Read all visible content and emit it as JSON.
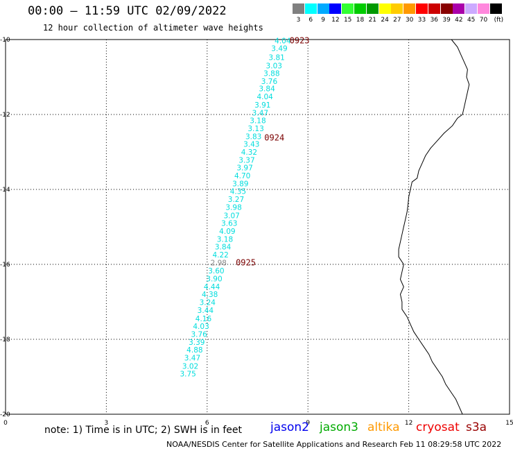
{
  "header": {
    "title": "00:00 – 11:59 UTC 02/09/2022",
    "subtitle": "12 hour collection of altimeter wave heights"
  },
  "color_scale": {
    "unit": "(ft)",
    "bins": [
      {
        "label": "3",
        "color": "#808080"
      },
      {
        "label": "6",
        "color": "#00ffff"
      },
      {
        "label": "9",
        "color": "#00aaff"
      },
      {
        "label": "12",
        "color": "#0000ff"
      },
      {
        "label": "15",
        "color": "#33ff33"
      },
      {
        "label": "18",
        "color": "#00cc00"
      },
      {
        "label": "21",
        "color": "#009900"
      },
      {
        "label": "24",
        "color": "#ffff00"
      },
      {
        "label": "27",
        "color": "#ffcc00"
      },
      {
        "label": "30",
        "color": "#ff9900"
      },
      {
        "label": "33",
        "color": "#ff0000"
      },
      {
        "label": "36",
        "color": "#cc0000"
      },
      {
        "label": "39",
        "color": "#880000"
      },
      {
        "label": "42",
        "color": "#aa00aa"
      },
      {
        "label": "45",
        "color": "#ccaaff"
      },
      {
        "label": "70",
        "color": "#ff88dd"
      },
      {
        "label": "",
        "color": "#000000"
      }
    ]
  },
  "map": {
    "x_ticks": [
      "0",
      "3",
      "6",
      "9",
      "12",
      "15"
    ],
    "y_ticks": [
      "-10",
      "-12",
      "-14",
      "-16",
      "-18",
      "-20"
    ],
    "x_range": [
      0,
      15
    ],
    "y_range": [
      -10,
      -20
    ],
    "grid": true
  },
  "chart_data": {
    "type": "scatter",
    "xlabel": "",
    "ylabel": "",
    "xlim": [
      0,
      15
    ],
    "ylim": [
      -20,
      -10
    ],
    "points": [
      {
        "lon": 8.25,
        "lat": -10.03,
        "label": "4.04",
        "color": "#00dddd"
      },
      {
        "lon": 8.15,
        "lat": -10.23,
        "label": "3.49",
        "color": "#00dddd"
      },
      {
        "lon": 8.07,
        "lat": -10.47,
        "label": "3.81",
        "color": "#00dddd"
      },
      {
        "lon": 7.99,
        "lat": -10.69,
        "label": "3.03",
        "color": "#00dddd"
      },
      {
        "lon": 7.92,
        "lat": -10.9,
        "label": "3.88",
        "color": "#00dddd"
      },
      {
        "lon": 7.85,
        "lat": -11.11,
        "label": "3.76",
        "color": "#00dddd"
      },
      {
        "lon": 7.78,
        "lat": -11.31,
        "label": "3.84",
        "color": "#00dddd"
      },
      {
        "lon": 7.72,
        "lat": -11.52,
        "label": "4.04",
        "color": "#00dddd"
      },
      {
        "lon": 7.65,
        "lat": -11.74,
        "label": "3.91",
        "color": "#00dddd"
      },
      {
        "lon": 7.58,
        "lat": -11.95,
        "label": "3.47",
        "color": "#00dddd"
      },
      {
        "lon": 7.51,
        "lat": -12.16,
        "label": "3.18",
        "color": "#00dddd"
      },
      {
        "lon": 7.45,
        "lat": -12.37,
        "label": "3.13",
        "color": "#00dddd"
      },
      {
        "lon": 7.38,
        "lat": -12.58,
        "label": "3.83",
        "color": "#00dddd"
      },
      {
        "lon": 7.32,
        "lat": -12.79,
        "label": "3.43",
        "color": "#00dddd"
      },
      {
        "lon": 7.25,
        "lat": -13.0,
        "label": "4.32",
        "color": "#00dddd"
      },
      {
        "lon": 7.18,
        "lat": -13.21,
        "label": "3.37",
        "color": "#00dddd"
      },
      {
        "lon": 7.12,
        "lat": -13.42,
        "label": "3.97",
        "color": "#00dddd"
      },
      {
        "lon": 7.05,
        "lat": -13.63,
        "label": "4.70",
        "color": "#00dddd"
      },
      {
        "lon": 6.99,
        "lat": -13.84,
        "label": "3.89",
        "color": "#00dddd"
      },
      {
        "lon": 6.92,
        "lat": -14.05,
        "label": "4.35",
        "color": "#00dddd"
      },
      {
        "lon": 6.86,
        "lat": -14.26,
        "label": "3.27",
        "color": "#00dddd"
      },
      {
        "lon": 6.79,
        "lat": -14.47,
        "label": "3.98",
        "color": "#00dddd"
      },
      {
        "lon": 6.73,
        "lat": -14.69,
        "label": "3.07",
        "color": "#00dddd"
      },
      {
        "lon": 6.66,
        "lat": -14.9,
        "label": "3.63",
        "color": "#00dddd"
      },
      {
        "lon": 6.6,
        "lat": -15.11,
        "label": "4.09",
        "color": "#00dddd"
      },
      {
        "lon": 6.53,
        "lat": -15.32,
        "label": "3.18",
        "color": "#00dddd"
      },
      {
        "lon": 6.47,
        "lat": -15.53,
        "label": "3.84",
        "color": "#00dddd"
      },
      {
        "lon": 6.4,
        "lat": -15.74,
        "label": "4.22",
        "color": "#00dddd"
      },
      {
        "lon": 6.34,
        "lat": -15.95,
        "label": "2.98",
        "color": "#888888"
      },
      {
        "lon": 6.27,
        "lat": -16.17,
        "label": "3.60",
        "color": "#00dddd"
      },
      {
        "lon": 6.21,
        "lat": -16.38,
        "label": "3.90",
        "color": "#00dddd"
      },
      {
        "lon": 6.14,
        "lat": -16.59,
        "label": "4.44",
        "color": "#00dddd"
      },
      {
        "lon": 6.08,
        "lat": -16.8,
        "label": "4.38",
        "color": "#00dddd"
      },
      {
        "lon": 6.01,
        "lat": -17.01,
        "label": "3.24",
        "color": "#00dddd"
      },
      {
        "lon": 5.95,
        "lat": -17.22,
        "label": "3.44",
        "color": "#00dddd"
      },
      {
        "lon": 5.89,
        "lat": -17.44,
        "label": "4.16",
        "color": "#00dddd"
      },
      {
        "lon": 5.82,
        "lat": -17.65,
        "label": "4.03",
        "color": "#00dddd"
      },
      {
        "lon": 5.76,
        "lat": -17.86,
        "label": "3.76",
        "color": "#00dddd"
      },
      {
        "lon": 5.69,
        "lat": -18.07,
        "label": "3.39",
        "color": "#00dddd"
      },
      {
        "lon": 5.63,
        "lat": -18.28,
        "label": "4.88",
        "color": "#00dddd"
      },
      {
        "lon": 5.56,
        "lat": -18.49,
        "label": "3.47",
        "color": "#00dddd"
      },
      {
        "lon": 5.5,
        "lat": -18.71,
        "label": "3.02",
        "color": "#00dddd"
      },
      {
        "lon": 5.43,
        "lat": -18.92,
        "label": "3.75",
        "color": "#00dddd"
      }
    ],
    "time_labels": [
      {
        "lon": 8.75,
        "lat": -10.03,
        "label": "0923",
        "color": "#7a0000"
      },
      {
        "lon": 8.0,
        "lat": -12.62,
        "label": "0924",
        "color": "#7a0000"
      },
      {
        "lon": 7.15,
        "lat": -15.95,
        "label": "0925",
        "color": "#7a0000"
      }
    ],
    "coastline": [
      [
        13.27,
        -10.0
      ],
      [
        13.45,
        -10.2
      ],
      [
        13.55,
        -10.4
      ],
      [
        13.65,
        -10.6
      ],
      [
        13.75,
        -10.8
      ],
      [
        13.72,
        -11.0
      ],
      [
        13.8,
        -11.2
      ],
      [
        13.75,
        -11.4
      ],
      [
        13.7,
        -11.6
      ],
      [
        13.65,
        -11.8
      ],
      [
        13.6,
        -12.0
      ],
      [
        13.45,
        -12.1
      ],
      [
        13.3,
        -12.3
      ],
      [
        13.05,
        -12.5
      ],
      [
        12.85,
        -12.7
      ],
      [
        12.65,
        -12.9
      ],
      [
        12.5,
        -13.1
      ],
      [
        12.4,
        -13.3
      ],
      [
        12.3,
        -13.5
      ],
      [
        12.25,
        -13.7
      ],
      [
        12.1,
        -13.8
      ],
      [
        12.05,
        -14.0
      ],
      [
        12.0,
        -14.2
      ],
      [
        11.98,
        -14.4
      ],
      [
        11.95,
        -14.6
      ],
      [
        11.9,
        -14.8
      ],
      [
        11.85,
        -15.0
      ],
      [
        11.8,
        -15.2
      ],
      [
        11.75,
        -15.4
      ],
      [
        11.7,
        -15.6
      ],
      [
        11.7,
        -15.8
      ],
      [
        11.85,
        -16.0
      ],
      [
        11.8,
        -16.2
      ],
      [
        11.75,
        -16.4
      ],
      [
        11.85,
        -16.6
      ],
      [
        11.75,
        -16.8
      ],
      [
        11.8,
        -17.0
      ],
      [
        11.8,
        -17.2
      ],
      [
        11.95,
        -17.4
      ],
      [
        12.05,
        -17.6
      ],
      [
        12.15,
        -17.8
      ],
      [
        12.3,
        -18.0
      ],
      [
        12.45,
        -18.2
      ],
      [
        12.6,
        -18.4
      ],
      [
        12.7,
        -18.6
      ],
      [
        12.85,
        -18.8
      ],
      [
        13.0,
        -19.0
      ],
      [
        13.1,
        -19.2
      ],
      [
        13.25,
        -19.4
      ],
      [
        13.4,
        -19.6
      ],
      [
        13.5,
        -19.8
      ],
      [
        13.6,
        -20.0
      ]
    ]
  },
  "note": "note: 1) Time is in UTC; 2) SWH is in feet",
  "satellites": [
    {
      "name": "jason2",
      "color": "#0000ee"
    },
    {
      "name": "jason3",
      "color": "#00aa00"
    },
    {
      "name": "altika",
      "color": "#ff9900"
    },
    {
      "name": "cryosat",
      "color": "#ee0000"
    },
    {
      "name": "s3a",
      "color": "#990000"
    }
  ],
  "footer": "NOAA/NESDIS Center for Satellite Applications and Research   Feb 11 08:29:58 UTC 2022"
}
